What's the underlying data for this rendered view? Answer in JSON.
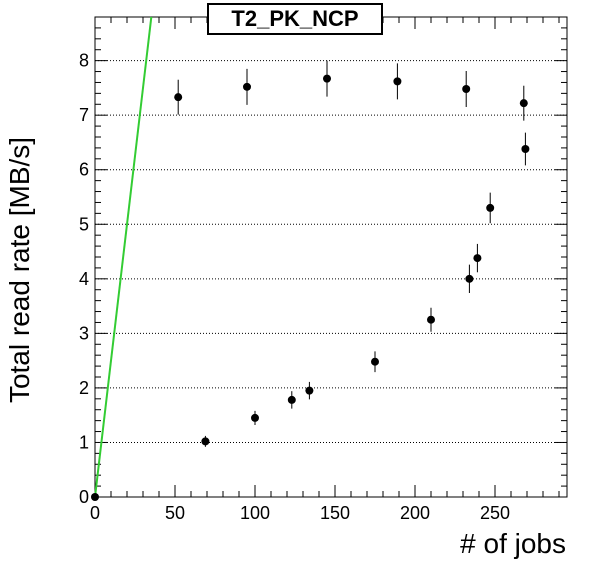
{
  "chart_data": {
    "type": "scatter",
    "title": "T2_PK_NCP",
    "xlabel": "# of jobs",
    "ylabel": "Total read rate [MB/s]",
    "xlim": [
      0,
      295
    ],
    "ylim": [
      0,
      8.8
    ],
    "x_ticks": [
      0,
      50,
      100,
      150,
      200,
      250
    ],
    "y_ticks": [
      0,
      1,
      2,
      3,
      4,
      5,
      6,
      7,
      8
    ],
    "grid": "horizontal dotted",
    "reference_line": {
      "x0": 0,
      "y0": 0,
      "slope": 0.25,
      "color": "#33cc33"
    },
    "points": [
      {
        "x": 0,
        "y": 0.0,
        "yerr": 0.05
      },
      {
        "x": 52,
        "y": 7.33,
        "yerr": 0.32
      },
      {
        "x": 69,
        "y": 1.02,
        "yerr": 0.1
      },
      {
        "x": 95,
        "y": 7.52,
        "yerr": 0.33
      },
      {
        "x": 100,
        "y": 1.45,
        "yerr": 0.13
      },
      {
        "x": 123,
        "y": 1.78,
        "yerr": 0.16
      },
      {
        "x": 134,
        "y": 1.95,
        "yerr": 0.16
      },
      {
        "x": 145,
        "y": 7.67,
        "yerr": 0.33
      },
      {
        "x": 175,
        "y": 2.48,
        "yerr": 0.19
      },
      {
        "x": 189,
        "y": 7.62,
        "yerr": 0.33
      },
      {
        "x": 210,
        "y": 3.25,
        "yerr": 0.22
      },
      {
        "x": 232,
        "y": 7.48,
        "yerr": 0.33
      },
      {
        "x": 234,
        "y": 4.0,
        "yerr": 0.26
      },
      {
        "x": 239,
        "y": 4.38,
        "yerr": 0.26
      },
      {
        "x": 247,
        "y": 5.3,
        "yerr": 0.28
      },
      {
        "x": 268,
        "y": 7.22,
        "yerr": 0.32
      },
      {
        "x": 269,
        "y": 6.38,
        "yerr": 0.3
      }
    ]
  },
  "colors": {
    "points": "#000000",
    "reference_line": "#33cc33",
    "grid": "#000000"
  }
}
